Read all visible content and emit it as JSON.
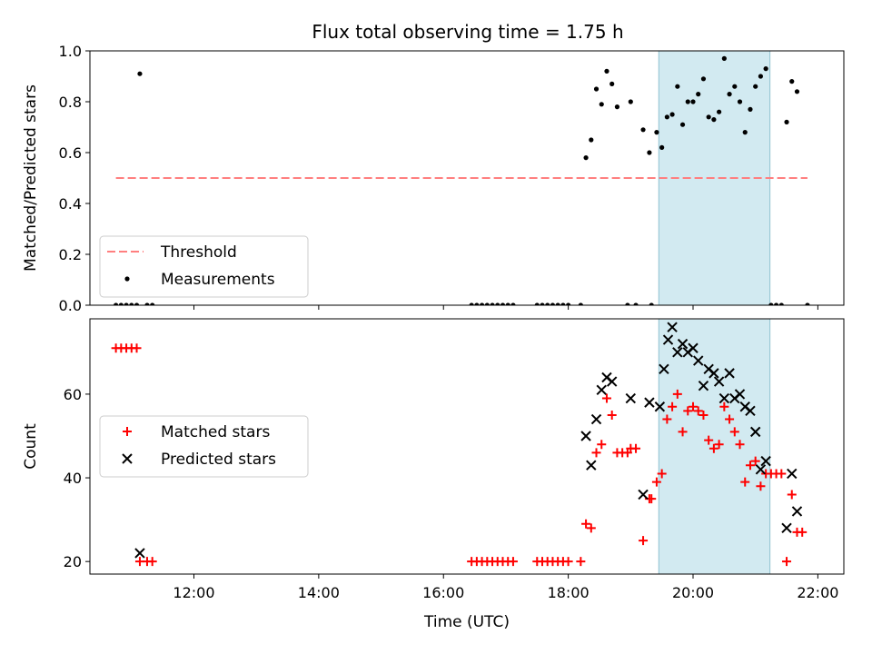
{
  "title": "Flux total observing time = 1.75 h",
  "colors": {
    "threshold": "#ff7f7f",
    "measurements": "#000000",
    "matched": "#ff0000",
    "predicted": "#000000",
    "highlight": "#add8e6"
  },
  "chart_data": [
    {
      "type": "scatter",
      "panel": "top",
      "ylabel": "Matched/Predicted stars",
      "ylim": [
        0,
        1.0
      ],
      "yticks": [
        "0.0",
        "0.2",
        "0.4",
        "0.6",
        "0.8",
        "1.0"
      ],
      "xlim": [
        "10:20",
        "22:25"
      ],
      "highlight_span": [
        "19:27",
        "21:14"
      ],
      "legend": {
        "placement": "lower left",
        "entries": [
          "Threshold",
          "Measurements"
        ]
      },
      "series": [
        {
          "name": "Threshold",
          "marker": "dashed-line",
          "points": [
            [
              "10:45",
              0.5
            ],
            [
              "21:50",
              0.5
            ]
          ]
        },
        {
          "name": "Measurements",
          "marker": "dot",
          "points": [
            [
              "10:45",
              0
            ],
            [
              "10:50",
              0
            ],
            [
              "10:55",
              0
            ],
            [
              "11:00",
              0
            ],
            [
              "11:05",
              0
            ],
            [
              "11:08",
              0.91
            ],
            [
              "11:15",
              0
            ],
            [
              "11:20",
              0
            ],
            [
              "16:27",
              0
            ],
            [
              "16:32",
              0
            ],
            [
              "16:37",
              0
            ],
            [
              "16:42",
              0
            ],
            [
              "16:47",
              0
            ],
            [
              "16:52",
              0
            ],
            [
              "16:57",
              0
            ],
            [
              "17:02",
              0
            ],
            [
              "17:07",
              0
            ],
            [
              "17:30",
              0
            ],
            [
              "17:35",
              0
            ],
            [
              "17:40",
              0
            ],
            [
              "17:45",
              0
            ],
            [
              "17:50",
              0
            ],
            [
              "17:55",
              0
            ],
            [
              "18:00",
              0
            ],
            [
              "18:12",
              0
            ],
            [
              "18:17",
              0.58
            ],
            [
              "18:22",
              0.65
            ],
            [
              "18:27",
              0.85
            ],
            [
              "18:32",
              0.79
            ],
            [
              "18:37",
              0.92
            ],
            [
              "18:42",
              0.87
            ],
            [
              "18:47",
              0.78
            ],
            [
              "18:57",
              0
            ],
            [
              "19:00",
              0.8
            ],
            [
              "19:05",
              0
            ],
            [
              "19:12",
              0.69
            ],
            [
              "19:18",
              0.6
            ],
            [
              "19:20",
              0
            ],
            [
              "19:25",
              0.68
            ],
            [
              "19:30",
              0.62
            ],
            [
              "19:35",
              0.74
            ],
            [
              "19:40",
              0.75
            ],
            [
              "19:45",
              0.86
            ],
            [
              "19:50",
              0.71
            ],
            [
              "19:55",
              0.8
            ],
            [
              "20:00",
              0.8
            ],
            [
              "20:05",
              0.83
            ],
            [
              "20:10",
              0.89
            ],
            [
              "20:15",
              0.74
            ],
            [
              "20:20",
              0.73
            ],
            [
              "20:25",
              0.76
            ],
            [
              "20:30",
              0.97
            ],
            [
              "20:35",
              0.83
            ],
            [
              "20:40",
              0.86
            ],
            [
              "20:45",
              0.8
            ],
            [
              "20:50",
              0.68
            ],
            [
              "20:55",
              0.77
            ],
            [
              "21:00",
              0.86
            ],
            [
              "21:05",
              0.9
            ],
            [
              "21:10",
              0.93
            ],
            [
              "21:15",
              0
            ],
            [
              "21:20",
              0
            ],
            [
              "21:25",
              0
            ],
            [
              "21:30",
              0.72
            ],
            [
              "21:35",
              0.88
            ],
            [
              "21:40",
              0.84
            ],
            [
              "21:50",
              0
            ]
          ]
        }
      ]
    },
    {
      "type": "scatter",
      "panel": "bottom",
      "xlabel": "Time (UTC)",
      "ylabel": "Count",
      "ylim": [
        17,
        78
      ],
      "yticks": [
        "20",
        "40",
        "60"
      ],
      "xlim": [
        "10:20",
        "22:25"
      ],
      "xticks": [
        "12:00",
        "14:00",
        "16:00",
        "18:00",
        "20:00",
        "22:00"
      ],
      "highlight_span": [
        "19:27",
        "21:14"
      ],
      "legend": {
        "placement": "center left",
        "entries": [
          "Matched stars",
          "Predicted stars"
        ]
      },
      "series": [
        {
          "name": "Matched stars",
          "marker": "plus",
          "points": [
            [
              "10:45",
              71
            ],
            [
              "10:50",
              71
            ],
            [
              "10:55",
              71
            ],
            [
              "11:00",
              71
            ],
            [
              "11:05",
              71
            ],
            [
              "11:08",
              20
            ],
            [
              "11:15",
              20
            ],
            [
              "11:20",
              20
            ],
            [
              "16:27",
              20
            ],
            [
              "16:32",
              20
            ],
            [
              "16:37",
              20
            ],
            [
              "16:42",
              20
            ],
            [
              "16:47",
              20
            ],
            [
              "16:52",
              20
            ],
            [
              "16:57",
              20
            ],
            [
              "17:02",
              20
            ],
            [
              "17:07",
              20
            ],
            [
              "17:30",
              20
            ],
            [
              "17:35",
              20
            ],
            [
              "17:40",
              20
            ],
            [
              "17:45",
              20
            ],
            [
              "17:50",
              20
            ],
            [
              "17:55",
              20
            ],
            [
              "18:00",
              20
            ],
            [
              "18:12",
              20
            ],
            [
              "18:17",
              29
            ],
            [
              "18:22",
              28
            ],
            [
              "18:27",
              46
            ],
            [
              "18:32",
              48
            ],
            [
              "18:37",
              59
            ],
            [
              "18:42",
              55
            ],
            [
              "18:47",
              46
            ],
            [
              "18:52",
              46
            ],
            [
              "18:57",
              46
            ],
            [
              "19:00",
              47
            ],
            [
              "19:05",
              47
            ],
            [
              "19:12",
              25
            ],
            [
              "19:18",
              35
            ],
            [
              "19:20",
              35
            ],
            [
              "19:25",
              39
            ],
            [
              "19:30",
              41
            ],
            [
              "19:35",
              54
            ],
            [
              "19:40",
              57
            ],
            [
              "19:45",
              60
            ],
            [
              "19:50",
              51
            ],
            [
              "19:55",
              56
            ],
            [
              "20:00",
              57
            ],
            [
              "20:05",
              56
            ],
            [
              "20:10",
              55
            ],
            [
              "20:15",
              49
            ],
            [
              "20:20",
              47
            ],
            [
              "20:25",
              48
            ],
            [
              "20:30",
              57
            ],
            [
              "20:35",
              54
            ],
            [
              "20:40",
              51
            ],
            [
              "20:45",
              48
            ],
            [
              "20:50",
              39
            ],
            [
              "20:55",
              43
            ],
            [
              "21:00",
              44
            ],
            [
              "21:05",
              38
            ],
            [
              "21:10",
              41
            ],
            [
              "21:15",
              41
            ],
            [
              "21:20",
              41
            ],
            [
              "21:25",
              41
            ],
            [
              "21:30",
              20
            ],
            [
              "21:35",
              36
            ],
            [
              "21:40",
              27
            ],
            [
              "21:45",
              27
            ]
          ]
        },
        {
          "name": "Predicted stars",
          "marker": "x",
          "points": [
            [
              "11:08",
              22
            ],
            [
              "18:17",
              50
            ],
            [
              "18:22",
              43
            ],
            [
              "18:27",
              54
            ],
            [
              "18:32",
              61
            ],
            [
              "18:37",
              64
            ],
            [
              "18:42",
              63
            ],
            [
              "19:00",
              59
            ],
            [
              "19:12",
              36
            ],
            [
              "19:18",
              58
            ],
            [
              "19:28",
              57
            ],
            [
              "19:32",
              66
            ],
            [
              "19:36",
              73
            ],
            [
              "19:40",
              76
            ],
            [
              "19:45",
              70
            ],
            [
              "19:50",
              72
            ],
            [
              "19:55",
              70
            ],
            [
              "20:00",
              71
            ],
            [
              "20:05",
              68
            ],
            [
              "20:10",
              62
            ],
            [
              "20:15",
              66
            ],
            [
              "20:20",
              65
            ],
            [
              "20:25",
              63
            ],
            [
              "20:30",
              59
            ],
            [
              "20:35",
              65
            ],
            [
              "20:40",
              59
            ],
            [
              "20:45",
              60
            ],
            [
              "20:50",
              57
            ],
            [
              "20:55",
              56
            ],
            [
              "21:00",
              51
            ],
            [
              "21:05",
              42
            ],
            [
              "21:10",
              44
            ],
            [
              "21:30",
              28
            ],
            [
              "21:35",
              41
            ],
            [
              "21:40",
              32
            ]
          ]
        }
      ]
    }
  ]
}
